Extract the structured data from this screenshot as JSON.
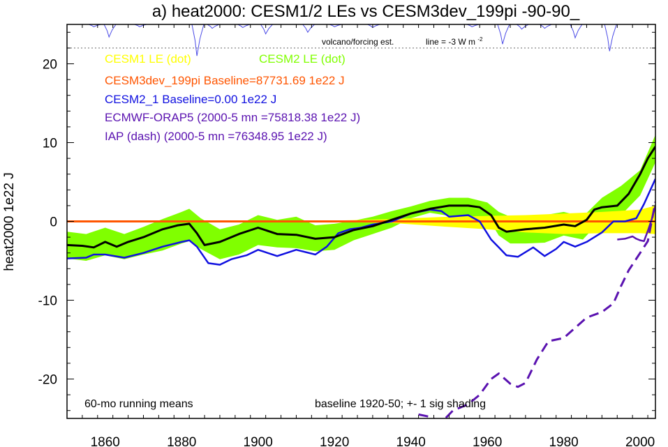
{
  "chart_data": {
    "type": "line",
    "title": "a) heat2000: CESM1/2 LEs vs CESM3dev_199pi -90-90_",
    "ylabel": "heat2000 1e22 J",
    "xlabel": "",
    "xlim": [
      1850,
      2004
    ],
    "ylim": [
      -25,
      25
    ],
    "x_ticks": [
      1860,
      1880,
      1900,
      1920,
      1940,
      1960,
      1980,
      2000
    ],
    "y_ticks": [
      -20,
      -10,
      0,
      10,
      20
    ],
    "zero_line": 0,
    "colors": {
      "cesm1_band": "#ffff00",
      "cesm2_band": "#80ff00",
      "ensemble_mean": "#000000",
      "cesm3dev": "#ff5500",
      "cesm2_1": "#1010e0",
      "orap5": "#5a12b0",
      "volcano": "#4a4ae6"
    },
    "legend": {
      "cesm1": "CESM1 LE (dot)",
      "cesm2": "CESM2 LE (dot)",
      "cesm3dev": "CESM3dev_199pi Baseline=87731.69 1e22 J",
      "cesm2_1": "CESM2_1 Baseline=0.00 1e22 J",
      "orap5": "ECMWF-ORAP5 (2000-5 mn =75818.38 1e22 J)",
      "iap": "IAP (dash) (2000-5 mn =76348.95 1e22 J)"
    },
    "volcano_label": "volcano/forcing est.",
    "volcano_line_label": "line = -3 W m",
    "volcano_line_sup": "-2",
    "volcano_baseline_y": 22,
    "note_left": "60-mo running means",
    "note_right": "baseline 1920-50; +- 1 sig shading",
    "cesm1_band": {
      "x": [
        1920,
        1935,
        1950,
        1960,
        1970,
        1980,
        1990,
        2000,
        2004
      ],
      "upper": [
        0.1,
        0.3,
        0.6,
        0.7,
        0.8,
        1.0,
        1.2,
        1.5,
        2.0
      ],
      "lower": [
        -0.1,
        -0.2,
        -0.7,
        -1.0,
        -1.4,
        -1.6,
        -1.5,
        -1.5,
        -1.6
      ]
    },
    "cesm2_band": {
      "x": [
        1850,
        1855,
        1860,
        1865,
        1870,
        1875,
        1880,
        1882,
        1885,
        1890,
        1895,
        1900,
        1905,
        1910,
        1915,
        1920,
        1925,
        1930,
        1935,
        1940,
        1945,
        1950,
        1955,
        1960,
        1963,
        1966,
        1970,
        1975,
        1980,
        1985,
        1990,
        1995,
        2000,
        2004
      ],
      "upper": [
        -1.3,
        -1.6,
        -0.8,
        -1.6,
        -0.7,
        0.3,
        1.2,
        1.6,
        0.4,
        -1.0,
        -0.4,
        0.8,
        0.2,
        0.6,
        -0.5,
        -0.3,
        0.1,
        0.6,
        1.3,
        1.9,
        2.6,
        3.0,
        3.0,
        2.4,
        1.2,
        0.6,
        0.3,
        0.8,
        1.2,
        0.6,
        3.0,
        4.5,
        6.5,
        11.0
      ],
      "lower": [
        -4.7,
        -5.0,
        -4.3,
        -4.8,
        -4.2,
        -3.7,
        -2.8,
        -2.5,
        -3.5,
        -4.8,
        -4.2,
        -3.0,
        -3.3,
        -3.4,
        -3.8,
        -3.6,
        -2.4,
        -1.6,
        -0.8,
        0.4,
        1.1,
        0.7,
        0.6,
        0.6,
        -1.8,
        -2.8,
        -2.8,
        -2.7,
        -1.8,
        -2.3,
        0.3,
        0.8,
        3.3,
        7.5
      ]
    },
    "series": [
      {
        "name": "ensemble mean",
        "x": [
          1850,
          1854,
          1857,
          1860,
          1863,
          1866,
          1870,
          1875,
          1879,
          1882,
          1884,
          1886,
          1890,
          1895,
          1900,
          1905,
          1910,
          1915,
          1920,
          1925,
          1930,
          1935,
          1940,
          1945,
          1950,
          1955,
          1958,
          1961,
          1963,
          1965,
          1970,
          1975,
          1980,
          1983,
          1986,
          1988,
          1990,
          1994,
          1997,
          2000,
          2002,
          2004
        ],
        "y": [
          -3.0,
          -3.1,
          -3.3,
          -2.6,
          -3.2,
          -2.6,
          -2.0,
          -1.0,
          -0.5,
          -0.3,
          -1.5,
          -3.0,
          -2.6,
          -1.6,
          -0.8,
          -1.6,
          -1.7,
          -2.2,
          -2.0,
          -1.1,
          -0.6,
          0.2,
          1.0,
          1.6,
          2.0,
          2.0,
          1.8,
          0.8,
          -0.8,
          -1.3,
          -1.0,
          -0.8,
          -0.4,
          -0.6,
          0.2,
          1.5,
          1.8,
          2.0,
          3.5,
          6.0,
          8.0,
          9.5
        ]
      },
      {
        "name": "CESM2_1",
        "x": [
          1850,
          1855,
          1857,
          1860,
          1865,
          1870,
          1875,
          1880,
          1882,
          1884,
          1887,
          1890,
          1893,
          1897,
          1900,
          1905,
          1910,
          1915,
          1918,
          1921,
          1924,
          1927,
          1930,
          1935,
          1940,
          1945,
          1948,
          1950,
          1955,
          1958,
          1961,
          1963,
          1965,
          1968,
          1972,
          1975,
          1978,
          1980,
          1983,
          1986,
          1990,
          1993,
          1996,
          1999,
          2001,
          2004
        ],
        "y": [
          -4.7,
          -4.6,
          -4.2,
          -4.2,
          -4.6,
          -4.0,
          -3.2,
          -2.6,
          -2.4,
          -3.2,
          -5.3,
          -5.5,
          -4.8,
          -4.3,
          -3.6,
          -4.4,
          -3.6,
          -4.2,
          -3.2,
          -1.5,
          -1.0,
          -0.8,
          -0.4,
          0.0,
          1.0,
          1.5,
          1.3,
          0.6,
          0.8,
          0.0,
          -2.3,
          -3.3,
          -4.3,
          -4.5,
          -3.3,
          -4.4,
          -3.5,
          -2.6,
          -3.2,
          -2.6,
          -1.4,
          0.0,
          0.0,
          0.4,
          2.2,
          5.4
        ]
      },
      {
        "name": "CESM3dev_199pi",
        "x": [
          1850,
          2004
        ],
        "y": [
          0.0,
          0.0
        ]
      },
      {
        "name": "ECMWF-ORAP5",
        "x": [
          1994,
          1996,
          1998,
          1999,
          2000,
          2001,
          2002,
          2003,
          2004
        ],
        "y": [
          -2.3,
          -2.2,
          -1.9,
          -2.2,
          -2.4,
          -2.5,
          -1.2,
          0.2,
          2.0
        ]
      },
      {
        "name": "IAP",
        "x": [
          1942,
          1945,
          1948,
          1951,
          1955,
          1958,
          1961,
          1963,
          1966,
          1968,
          1970,
          1973,
          1976,
          1978,
          1980,
          1983,
          1986,
          1990,
          1993,
          1995,
          1997,
          2000,
          2002,
          2004
        ],
        "y": [
          -24.5,
          -24.8,
          -25.5,
          -24.0,
          -23.2,
          -22.0,
          -20.0,
          -19.3,
          -20.6,
          -21.0,
          -20.5,
          -17.5,
          -15.2,
          -15.0,
          -14.8,
          -13.5,
          -12.2,
          -11.5,
          -10.4,
          -8.2,
          -6.2,
          -4.0,
          -2.5,
          2.5
        ]
      }
    ],
    "volcano_events": [
      {
        "x": 1857,
        "depth": 0.3
      },
      {
        "x": 1861,
        "depth": 1.6
      },
      {
        "x": 1869,
        "depth": 0.3
      },
      {
        "x": 1884,
        "depth": 4.0
      },
      {
        "x": 1888,
        "depth": 0.5
      },
      {
        "x": 1896,
        "depth": 0.4
      },
      {
        "x": 1902,
        "depth": 1.2
      },
      {
        "x": 1913,
        "depth": 1.0
      },
      {
        "x": 1920,
        "depth": 0.3
      },
      {
        "x": 1930,
        "depth": 0.4
      },
      {
        "x": 1956,
        "depth": 0.3
      },
      {
        "x": 1964,
        "depth": 2.5
      },
      {
        "x": 1969,
        "depth": 0.6
      },
      {
        "x": 1975,
        "depth": 0.5
      },
      {
        "x": 1983,
        "depth": 1.7
      },
      {
        "x": 1992,
        "depth": 3.4
      }
    ]
  }
}
